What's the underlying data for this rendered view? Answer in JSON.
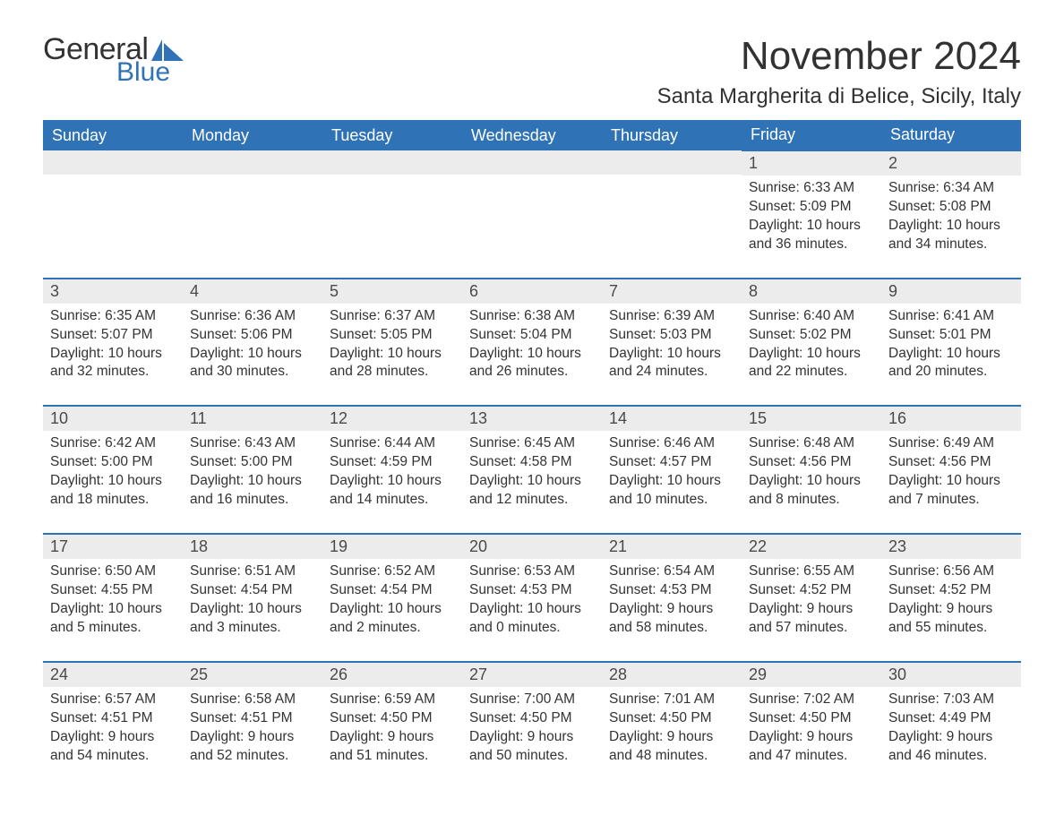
{
  "brand": {
    "word1": "General",
    "word2": "Blue",
    "flag_color": "#2f72b6"
  },
  "title": "November 2024",
  "location": "Santa Margherita di Belice, Sicily, Italy",
  "colors": {
    "header_bg": "#2f72b6",
    "header_text": "#ffffff",
    "row_border": "#2f72b6",
    "daynum_bg": "#ececec",
    "body_text": "#333333",
    "page_bg": "#ffffff"
  },
  "typography": {
    "title_fontsize": 44,
    "location_fontsize": 24,
    "header_fontsize": 18,
    "daynum_fontsize": 18,
    "body_fontsize": 15.5
  },
  "layout": {
    "columns": 7,
    "col_width_pct": 14.285
  },
  "weekdays": [
    "Sunday",
    "Monday",
    "Tuesday",
    "Wednesday",
    "Thursday",
    "Friday",
    "Saturday"
  ],
  "weeks": [
    [
      null,
      null,
      null,
      null,
      null,
      {
        "n": "1",
        "sunrise": "6:33 AM",
        "sunset": "5:09 PM",
        "daylight": "10 hours and 36 minutes."
      },
      {
        "n": "2",
        "sunrise": "6:34 AM",
        "sunset": "5:08 PM",
        "daylight": "10 hours and 34 minutes."
      }
    ],
    [
      {
        "n": "3",
        "sunrise": "6:35 AM",
        "sunset": "5:07 PM",
        "daylight": "10 hours and 32 minutes."
      },
      {
        "n": "4",
        "sunrise": "6:36 AM",
        "sunset": "5:06 PM",
        "daylight": "10 hours and 30 minutes."
      },
      {
        "n": "5",
        "sunrise": "6:37 AM",
        "sunset": "5:05 PM",
        "daylight": "10 hours and 28 minutes."
      },
      {
        "n": "6",
        "sunrise": "6:38 AM",
        "sunset": "5:04 PM",
        "daylight": "10 hours and 26 minutes."
      },
      {
        "n": "7",
        "sunrise": "6:39 AM",
        "sunset": "5:03 PM",
        "daylight": "10 hours and 24 minutes."
      },
      {
        "n": "8",
        "sunrise": "6:40 AM",
        "sunset": "5:02 PM",
        "daylight": "10 hours and 22 minutes."
      },
      {
        "n": "9",
        "sunrise": "6:41 AM",
        "sunset": "5:01 PM",
        "daylight": "10 hours and 20 minutes."
      }
    ],
    [
      {
        "n": "10",
        "sunrise": "6:42 AM",
        "sunset": "5:00 PM",
        "daylight": "10 hours and 18 minutes."
      },
      {
        "n": "11",
        "sunrise": "6:43 AM",
        "sunset": "5:00 PM",
        "daylight": "10 hours and 16 minutes."
      },
      {
        "n": "12",
        "sunrise": "6:44 AM",
        "sunset": "4:59 PM",
        "daylight": "10 hours and 14 minutes."
      },
      {
        "n": "13",
        "sunrise": "6:45 AM",
        "sunset": "4:58 PM",
        "daylight": "10 hours and 12 minutes."
      },
      {
        "n": "14",
        "sunrise": "6:46 AM",
        "sunset": "4:57 PM",
        "daylight": "10 hours and 10 minutes."
      },
      {
        "n": "15",
        "sunrise": "6:48 AM",
        "sunset": "4:56 PM",
        "daylight": "10 hours and 8 minutes."
      },
      {
        "n": "16",
        "sunrise": "6:49 AM",
        "sunset": "4:56 PM",
        "daylight": "10 hours and 7 minutes."
      }
    ],
    [
      {
        "n": "17",
        "sunrise": "6:50 AM",
        "sunset": "4:55 PM",
        "daylight": "10 hours and 5 minutes."
      },
      {
        "n": "18",
        "sunrise": "6:51 AM",
        "sunset": "4:54 PM",
        "daylight": "10 hours and 3 minutes."
      },
      {
        "n": "19",
        "sunrise": "6:52 AM",
        "sunset": "4:54 PM",
        "daylight": "10 hours and 2 minutes."
      },
      {
        "n": "20",
        "sunrise": "6:53 AM",
        "sunset": "4:53 PM",
        "daylight": "10 hours and 0 minutes."
      },
      {
        "n": "21",
        "sunrise": "6:54 AM",
        "sunset": "4:53 PM",
        "daylight": "9 hours and 58 minutes."
      },
      {
        "n": "22",
        "sunrise": "6:55 AM",
        "sunset": "4:52 PM",
        "daylight": "9 hours and 57 minutes."
      },
      {
        "n": "23",
        "sunrise": "6:56 AM",
        "sunset": "4:52 PM",
        "daylight": "9 hours and 55 minutes."
      }
    ],
    [
      {
        "n": "24",
        "sunrise": "6:57 AM",
        "sunset": "4:51 PM",
        "daylight": "9 hours and 54 minutes."
      },
      {
        "n": "25",
        "sunrise": "6:58 AM",
        "sunset": "4:51 PM",
        "daylight": "9 hours and 52 minutes."
      },
      {
        "n": "26",
        "sunrise": "6:59 AM",
        "sunset": "4:50 PM",
        "daylight": "9 hours and 51 minutes."
      },
      {
        "n": "27",
        "sunrise": "7:00 AM",
        "sunset": "4:50 PM",
        "daylight": "9 hours and 50 minutes."
      },
      {
        "n": "28",
        "sunrise": "7:01 AM",
        "sunset": "4:50 PM",
        "daylight": "9 hours and 48 minutes."
      },
      {
        "n": "29",
        "sunrise": "7:02 AM",
        "sunset": "4:50 PM",
        "daylight": "9 hours and 47 minutes."
      },
      {
        "n": "30",
        "sunrise": "7:03 AM",
        "sunset": "4:49 PM",
        "daylight": "9 hours and 46 minutes."
      }
    ]
  ],
  "labels": {
    "sunrise": "Sunrise: ",
    "sunset": "Sunset: ",
    "daylight": "Daylight: "
  }
}
